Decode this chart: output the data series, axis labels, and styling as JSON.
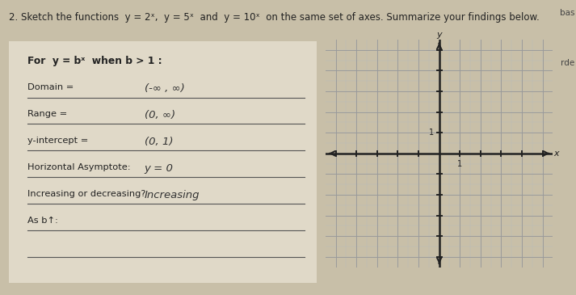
{
  "bg_color": "#c8bfa8",
  "page_color": "#e8e2d4",
  "box_color": "#e0d9c8",
  "title": "2. Sketch the functions  y = 2ˣ,  y = 5ˣ  and  y = 10ˣ  on the same set of axes. Summarize your findings below.",
  "title_fontsize": 8.5,
  "grid_bg": "#ddd8cc",
  "grid_line_color": "#999999",
  "grid_minor_color": "#bbbbbb",
  "axis_color": "#222222",
  "label_color": "#222222",
  "hw_color": "#333333",
  "right_note_top": "bas",
  "right_note_bot": "rde",
  "items": [
    {
      "label": "For  y = bˣ  when b > 1 :",
      "answer": "",
      "bold": true,
      "underline": false
    },
    {
      "label": "Domain =",
      "answer": "(-∞ , ∞)",
      "bold": false,
      "underline": true
    },
    {
      "label": "Range =",
      "answer": "(0, ∞)",
      "bold": false,
      "underline": true
    },
    {
      "label": "y-intercept =",
      "answer": "(0, 1)",
      "bold": false,
      "underline": true
    },
    {
      "label": "Horizontal Asymptote:",
      "answer": "y = 0",
      "bold": false,
      "underline": true
    },
    {
      "label": "Increasing or decreasing?",
      "answer": "Increasing",
      "bold": false,
      "underline": true
    },
    {
      "label": "As b↑:",
      "answer": "",
      "bold": false,
      "underline": true
    },
    {
      "label": "",
      "answer": "",
      "bold": false,
      "underline": true
    }
  ],
  "grid_xlim": [
    -5,
    5
  ],
  "grid_ylim": [
    -5,
    5
  ],
  "grid_cols": 20,
  "grid_rows": 20
}
